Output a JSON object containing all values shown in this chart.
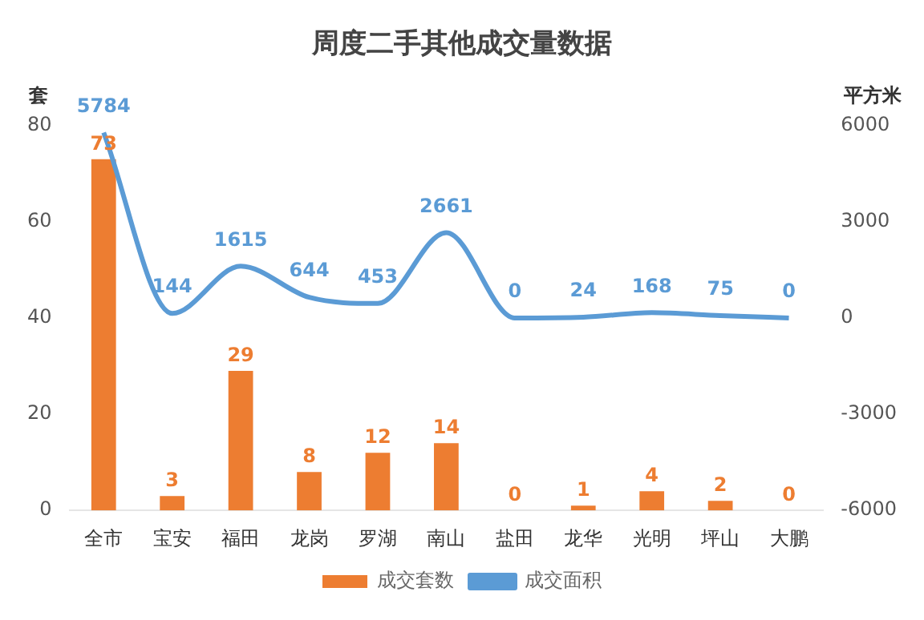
{
  "chart_data": {
    "type": "bar",
    "title": "周度二手其他成交量数据",
    "ylabel": "套",
    "y2label": "平方米",
    "categories": [
      "全市",
      "宝安",
      "福田",
      "龙岗",
      "罗湖",
      "南山",
      "盐田",
      "龙华",
      "光明",
      "坪山",
      "大鹏"
    ],
    "series": [
      {
        "name": "成交套数",
        "color": "#ed7d31",
        "values": [
          73,
          3,
          29,
          8,
          12,
          14,
          0,
          1,
          4,
          2,
          0
        ]
      },
      {
        "name": "成交面积",
        "type": "line",
        "axis": "y2",
        "color": "#5b9bd5",
        "values": [
          5784,
          144,
          1615,
          644,
          453,
          2661,
          0,
          24,
          168,
          75,
          0
        ]
      }
    ],
    "ylim": [
      0,
      80
    ],
    "yticks": [
      0,
      20,
      40,
      60,
      80
    ],
    "y2lim": [
      -6000,
      6000
    ],
    "y2ticks": [
      -6000,
      -3000,
      0,
      3000,
      6000
    ],
    "data_labels": true,
    "legend": "bottom",
    "grid": false,
    "marker": "none",
    "line_style": "solid"
  }
}
